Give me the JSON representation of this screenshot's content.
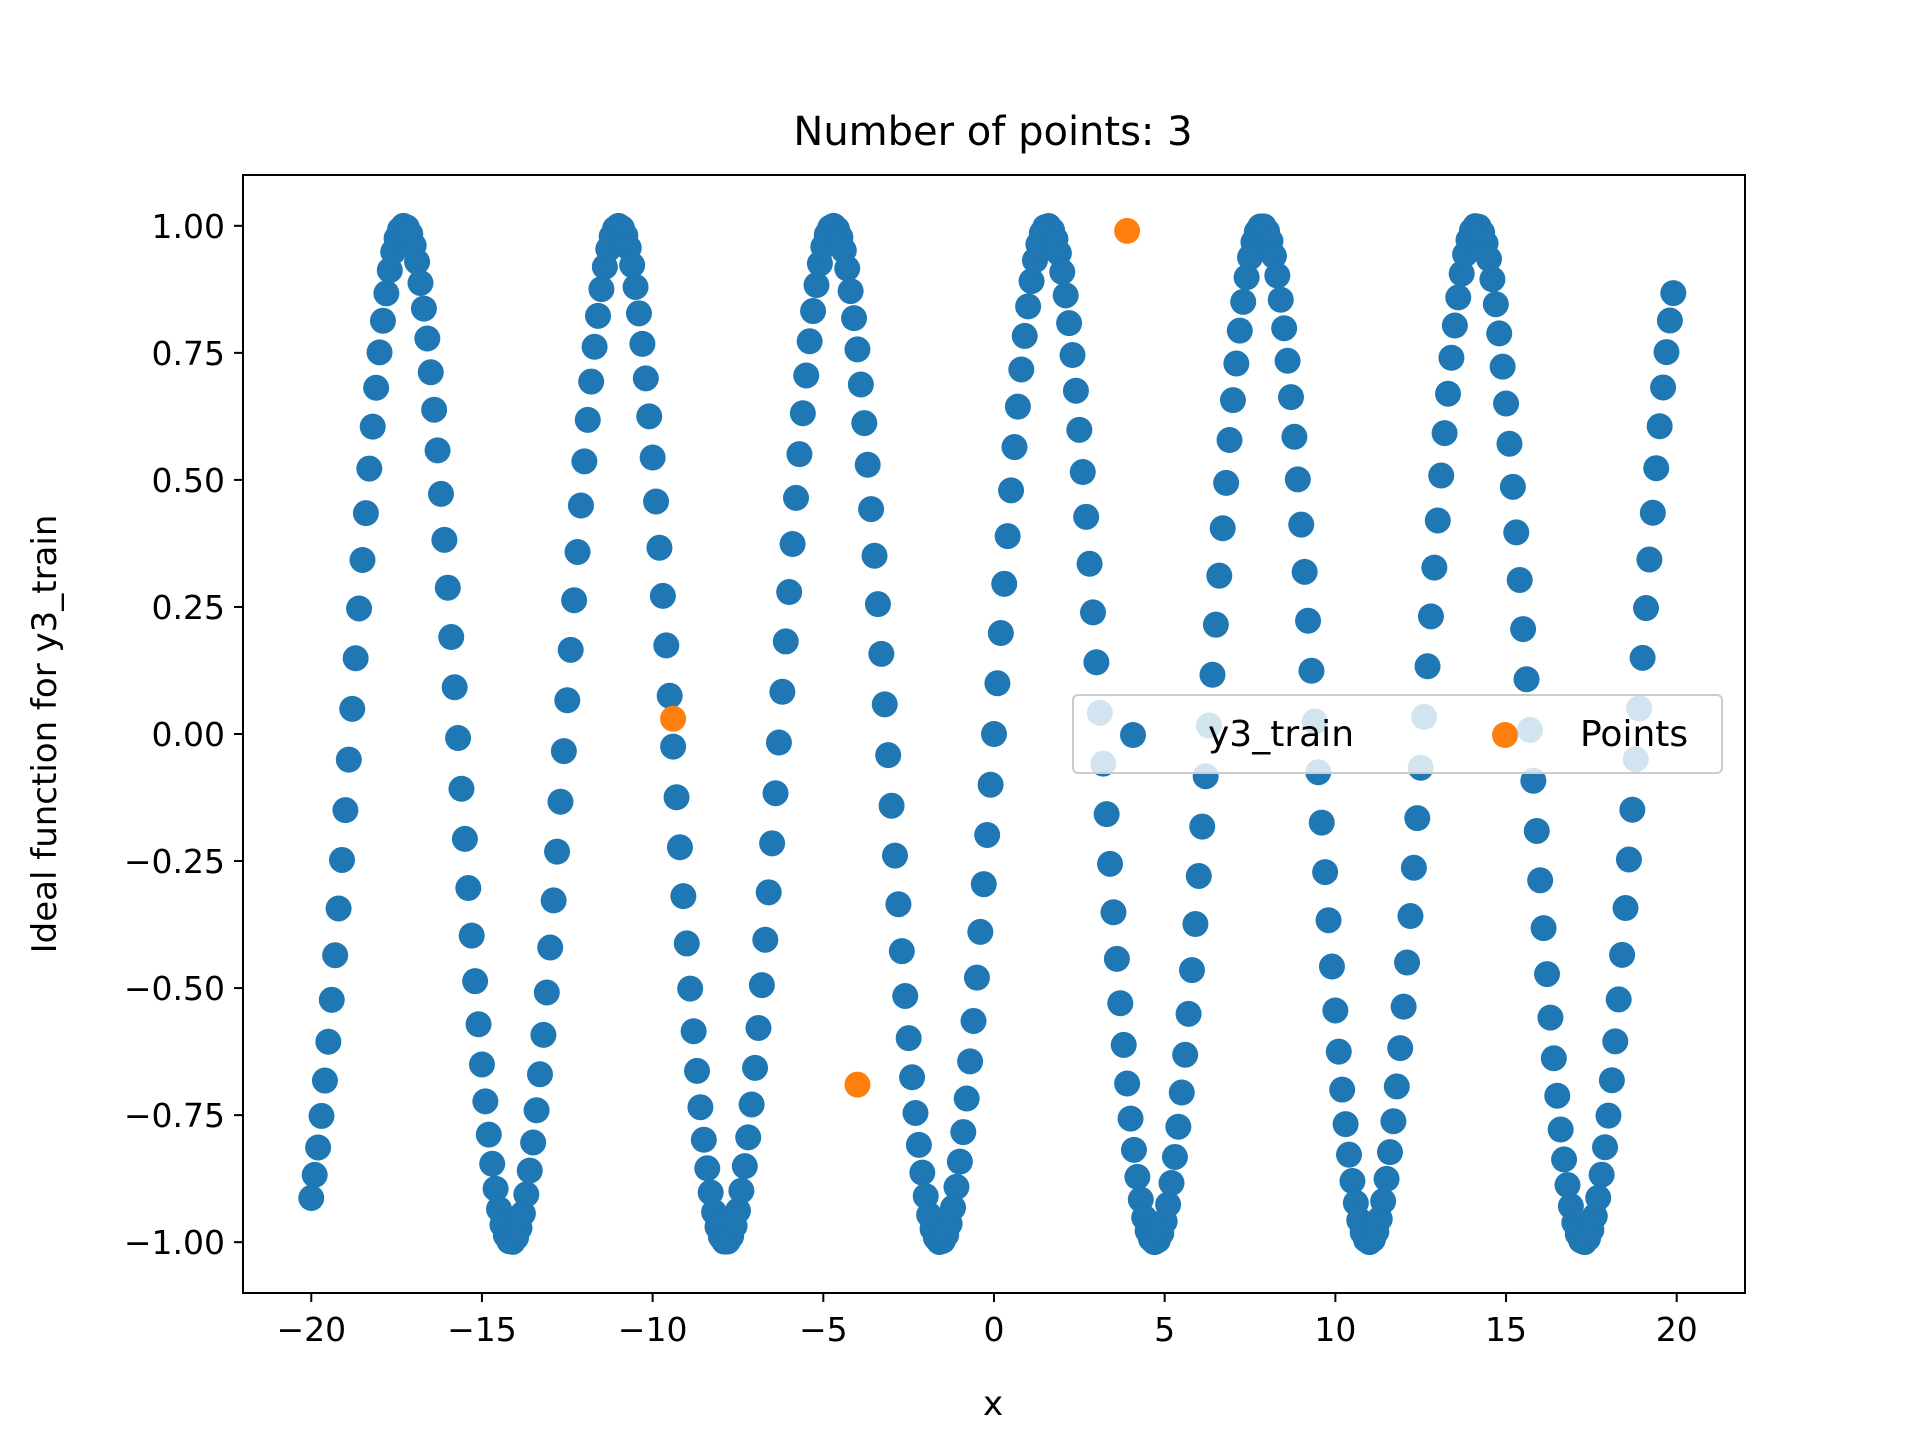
{
  "chart_data": {
    "type": "scatter",
    "title": "Number of points: 3",
    "xlabel": "x",
    "ylabel": "Ideal function for y3_train",
    "xlim": [
      -22,
      22
    ],
    "ylim": [
      -1.1,
      1.1
    ],
    "xticks": [
      -20,
      -15,
      -10,
      -5,
      0,
      5,
      10,
      15,
      20
    ],
    "xtick_labels": [
      "−20",
      "−15",
      "−10",
      "−5",
      "0",
      "5",
      "10",
      "15",
      "20"
    ],
    "yticks": [
      1.0,
      0.75,
      0.5,
      0.25,
      0.0,
      -0.25,
      -0.5,
      -0.75,
      -1.0
    ],
    "ytick_labels": [
      "1.00",
      "0.75",
      "0.50",
      "0.25",
      "0.00",
      "−0.25",
      "−0.50",
      "−0.75",
      "−1.00"
    ],
    "grid": false,
    "legend_placement": "center-right",
    "series": [
      {
        "name": "y3_train",
        "color": "#1f77b4",
        "function": "sin",
        "x_start": -20,
        "x_end": 19.9,
        "x_step": 0.1
      },
      {
        "name": "Points",
        "color": "#ff7f0e",
        "x": [
          -9.4,
          -4.0,
          3.9
        ],
        "y": [
          0.03,
          -0.69,
          0.99
        ]
      }
    ]
  }
}
